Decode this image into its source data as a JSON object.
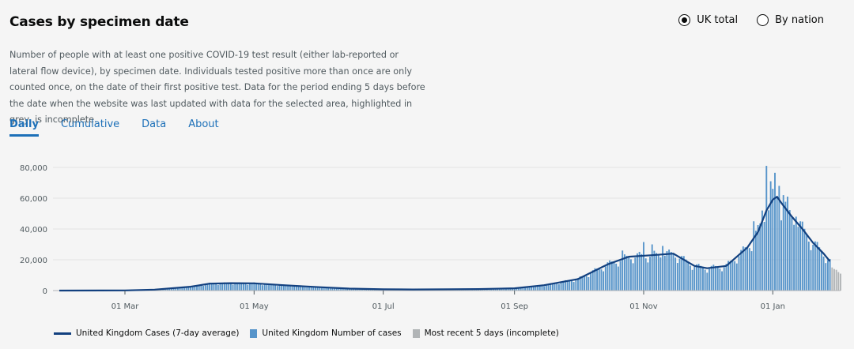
{
  "header": {
    "title": "Cases by specimen date",
    "radio_uk_total": "UK total",
    "radio_by_nation": "By nation",
    "selected": "UK total"
  },
  "description": "Number of people with at least one positive COVID-19 test result (either lab-reported or lateral flow device), by specimen date. Individuals tested positive more than once are only counted once, on the date of their first positive test. Data for the period ending 5 days before the date when the website was last updated with data for the selected area, highlighted in grey, is incomplete.",
  "tabs": [
    {
      "label": "Daily",
      "active": true
    },
    {
      "label": "Cumulative",
      "active": false
    },
    {
      "label": "Data",
      "active": false
    },
    {
      "label": "About",
      "active": false
    }
  ],
  "legend": {
    "avg": "United Kingdom Cases (7-day average)",
    "cases": "United Kingdom Number of cases",
    "recent": "Most recent 5 days (incomplete)"
  },
  "colors": {
    "bar": "#5694ca",
    "line": "#12407f",
    "incomplete": "#b1b4b6",
    "link": "#1d70b8"
  },
  "chart_data": {
    "type": "bar",
    "y_ticks": [
      "0",
      "20,000",
      "40,000",
      "60,000",
      "80,000"
    ],
    "ylim": [
      0,
      80000
    ],
    "x_ticks": [
      "01 Mar",
      "01 May",
      "01 Jul",
      "01 Sep",
      "01 Nov",
      "01 Jan"
    ],
    "x_start": "2020-01-30",
    "x_end": "2021-02-02",
    "series": [
      {
        "name": "United Kingdom Cases (7-day average)",
        "type": "line"
      },
      {
        "name": "United Kingdom Number of cases",
        "type": "bar"
      },
      {
        "name": "Most recent 5 days (incomplete)",
        "type": "bar"
      }
    ],
    "average_points": [
      [
        "2020-01-30",
        0
      ],
      [
        "2020-03-01",
        100
      ],
      [
        "2020-03-15",
        600
      ],
      [
        "2020-04-01",
        2500
      ],
      [
        "2020-04-10",
        4500
      ],
      [
        "2020-04-20",
        4800
      ],
      [
        "2020-05-01",
        4700
      ],
      [
        "2020-05-15",
        3500
      ],
      [
        "2020-06-01",
        2200
      ],
      [
        "2020-06-15",
        1300
      ],
      [
        "2020-07-01",
        800
      ],
      [
        "2020-07-15",
        700
      ],
      [
        "2020-08-01",
        800
      ],
      [
        "2020-08-15",
        1000
      ],
      [
        "2020-09-01",
        1500
      ],
      [
        "2020-09-15",
        3500
      ],
      [
        "2020-10-01",
        7500
      ],
      [
        "2020-10-15",
        17000
      ],
      [
        "2020-10-25",
        22000
      ],
      [
        "2020-11-05",
        23000
      ],
      [
        "2020-11-15",
        24000
      ],
      [
        "2020-11-25",
        16000
      ],
      [
        "2020-12-01",
        14500
      ],
      [
        "2020-12-10",
        16000
      ],
      [
        "2020-12-20",
        28000
      ],
      [
        "2020-12-25",
        38000
      ],
      [
        "2020-12-29",
        52000
      ],
      [
        "2021-01-01",
        59000
      ],
      [
        "2021-01-03",
        61000
      ],
      [
        "2021-01-05",
        57000
      ],
      [
        "2021-01-10",
        48000
      ],
      [
        "2021-01-15",
        40000
      ],
      [
        "2021-01-20",
        31000
      ],
      [
        "2021-01-25",
        24000
      ],
      [
        "2021-01-28",
        19000
      ]
    ],
    "spikes": [
      [
        "2020-10-22",
        26000
      ],
      [
        "2020-11-01",
        31500
      ],
      [
        "2020-11-05",
        30000
      ],
      [
        "2020-11-10",
        29000
      ],
      [
        "2020-12-23",
        45000
      ],
      [
        "2020-12-27",
        52000
      ],
      [
        "2020-12-29",
        81000
      ],
      [
        "2020-12-31",
        71000
      ],
      [
        "2021-01-02",
        76500
      ],
      [
        "2021-01-04",
        68000
      ],
      [
        "2021-01-06",
        62000
      ],
      [
        "2021-01-08",
        61000
      ],
      [
        "2021-01-12",
        48000
      ],
      [
        "2021-01-14",
        45000
      ]
    ],
    "incomplete_start": "2021-01-29",
    "incomplete_values": [
      15000,
      14000,
      13500,
      12000,
      11000
    ]
  }
}
